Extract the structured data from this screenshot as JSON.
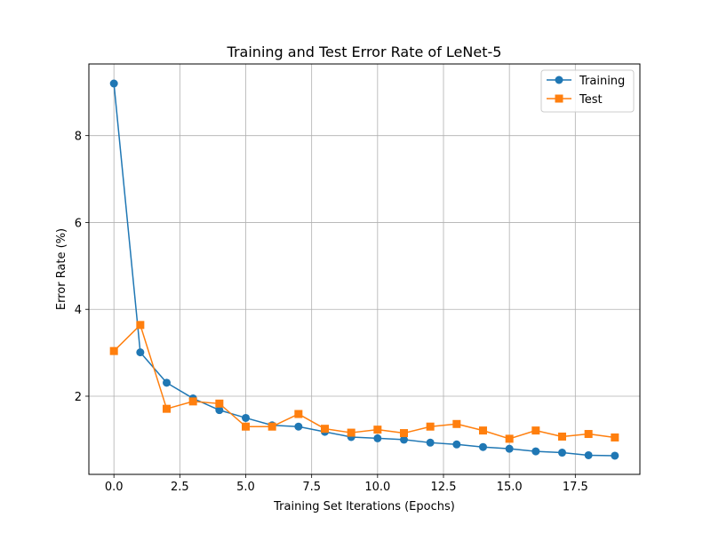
{
  "chart_data": {
    "type": "line",
    "title": "Training and Test Error Rate of LeNet-5",
    "xlabel": "Training Set Iterations (Epochs)",
    "ylabel": "Error Rate (%)",
    "xlim": [
      -0.95,
      19.95
    ],
    "ylim": [
      0.2,
      9.65
    ],
    "xticks": [
      0.0,
      2.5,
      5.0,
      7.5,
      10.0,
      12.5,
      15.0,
      17.5
    ],
    "xtick_labels": [
      "0.0",
      "2.5",
      "5.0",
      "7.5",
      "10.0",
      "12.5",
      "15.0",
      "17.5"
    ],
    "yticks": [
      2,
      4,
      6,
      8
    ],
    "ytick_labels": [
      "2",
      "4",
      "6",
      "8"
    ],
    "grid": true,
    "legend_position": "top-right",
    "x": [
      0,
      1,
      2,
      3,
      4,
      5,
      6,
      7,
      8,
      9,
      10,
      11,
      12,
      13,
      14,
      15,
      16,
      17,
      18,
      19
    ],
    "series": [
      {
        "name": "Training",
        "color": "#1f77b4",
        "marker": "circle",
        "values": [
          9.2,
          3.01,
          2.31,
          1.95,
          1.68,
          1.5,
          1.33,
          1.3,
          1.18,
          1.06,
          1.03,
          1.0,
          0.93,
          0.89,
          0.83,
          0.79,
          0.73,
          0.7,
          0.64,
          0.63
        ]
      },
      {
        "name": "Test",
        "color": "#ff7f0e",
        "marker": "square",
        "values": [
          3.04,
          3.64,
          1.71,
          1.88,
          1.83,
          1.3,
          1.3,
          1.59,
          1.25,
          1.16,
          1.23,
          1.15,
          1.3,
          1.36,
          1.21,
          1.02,
          1.21,
          1.07,
          1.13,
          1.05
        ]
      }
    ]
  }
}
